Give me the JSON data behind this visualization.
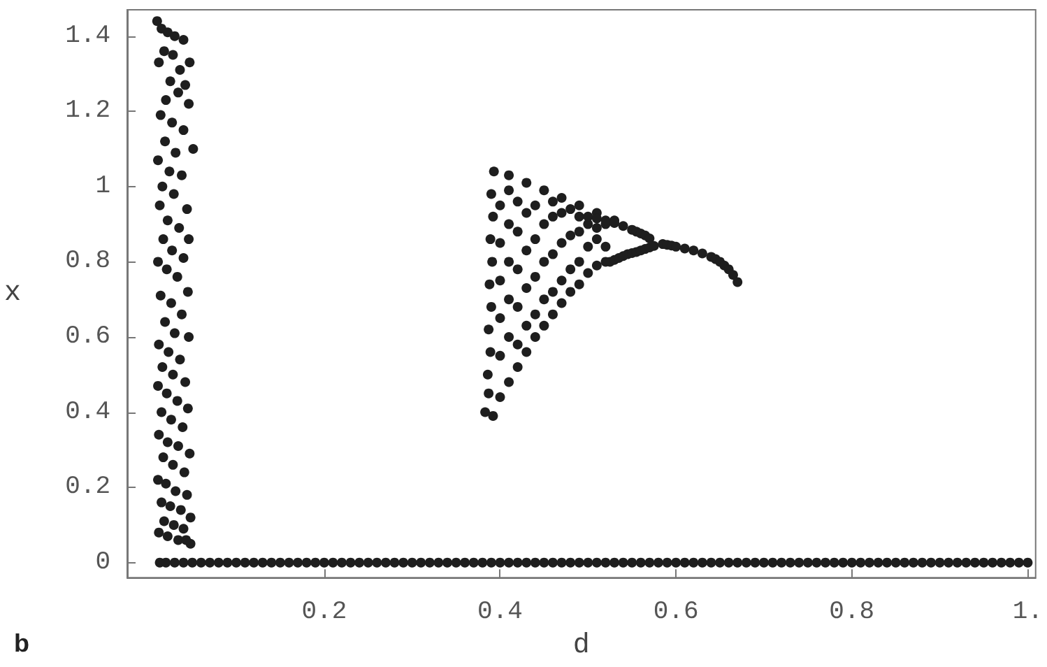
{
  "chart_data": {
    "type": "scatter",
    "xlabel": "d",
    "ylabel": "x",
    "annotations": [
      "b"
    ],
    "xlim": [
      -0.024,
      1.009
    ],
    "ylim": [
      -0.04,
      1.47
    ],
    "xticks": [
      0.2,
      0.4,
      0.6,
      0.8,
      {
        "value": 1,
        "label": "1."
      }
    ],
    "yticks": [
      0,
      0.2,
      0.4,
      0.6,
      0.8,
      1,
      1.2,
      1.4
    ],
    "marker": "circle",
    "series": [
      {
        "color": "#1e1e1e",
        "x": [
          0.01,
          0.015,
          0.022,
          0.03,
          0.04,
          0.047,
          0.018,
          0.028,
          0.036,
          0.012,
          0.025,
          0.042,
          0.02,
          0.034,
          0.046,
          0.014,
          0.027,
          0.04,
          0.051,
          0.019,
          0.031,
          0.011,
          0.024,
          0.038,
          0.016,
          0.029,
          0.044,
          0.013,
          0.022,
          0.035,
          0.046,
          0.017,
          0.027,
          0.04,
          0.011,
          0.021,
          0.033,
          0.045,
          0.014,
          0.026,
          0.038,
          0.019,
          0.03,
          0.046,
          0.012,
          0.023,
          0.036,
          0.016,
          0.028,
          0.042,
          0.011,
          0.021,
          0.033,
          0.045,
          0.015,
          0.026,
          0.039,
          0.012,
          0.022,
          0.034,
          0.047,
          0.017,
          0.028,
          0.041,
          0.011,
          0.02,
          0.031,
          0.044,
          0.015,
          0.025,
          0.037,
          0.048,
          0.018,
          0.029,
          0.04,
          0.012,
          0.022,
          0.034,
          0.048,
          0.043
        ],
        "values": [
          1.44,
          1.42,
          1.41,
          1.4,
          1.39,
          1.33,
          1.36,
          1.35,
          1.31,
          1.33,
          1.28,
          1.27,
          1.23,
          1.25,
          1.22,
          1.19,
          1.17,
          1.15,
          1.1,
          1.12,
          1.09,
          1.07,
          1.04,
          1.03,
          1.0,
          0.98,
          0.94,
          0.95,
          0.91,
          0.89,
          0.86,
          0.86,
          0.83,
          0.81,
          0.8,
          0.78,
          0.76,
          0.72,
          0.71,
          0.69,
          0.66,
          0.64,
          0.61,
          0.6,
          0.58,
          0.56,
          0.54,
          0.52,
          0.5,
          0.48,
          0.47,
          0.45,
          0.43,
          0.41,
          0.4,
          0.38,
          0.36,
          0.34,
          0.32,
          0.31,
          0.29,
          0.28,
          0.26,
          0.24,
          0.22,
          0.21,
          0.19,
          0.18,
          0.16,
          0.15,
          0.14,
          0.12,
          0.11,
          0.1,
          0.09,
          0.08,
          0.07,
          0.06,
          0.05,
          0.06
        ]
      },
      {
        "color": "#1e1e1e",
        "x": [
          0.013,
          0.02,
          0.03,
          0.04,
          0.05,
          0.06,
          0.07,
          0.08,
          0.09,
          0.1,
          0.11,
          0.12,
          0.13,
          0.14,
          0.15,
          0.16,
          0.17,
          0.18,
          0.19,
          0.2,
          0.21,
          0.22,
          0.23,
          0.24,
          0.25,
          0.26,
          0.27,
          0.28,
          0.29,
          0.3,
          0.31,
          0.32,
          0.33,
          0.34,
          0.35,
          0.36,
          0.37,
          0.38,
          0.39,
          0.4,
          0.41,
          0.42,
          0.43,
          0.44,
          0.45,
          0.46,
          0.47,
          0.48,
          0.49,
          0.5,
          0.51,
          0.52,
          0.53,
          0.54,
          0.55,
          0.56,
          0.57,
          0.58,
          0.59,
          0.6,
          0.61,
          0.62,
          0.63,
          0.64,
          0.65,
          0.66,
          0.67,
          0.68,
          0.69,
          0.7,
          0.71,
          0.72,
          0.73,
          0.74,
          0.75,
          0.76,
          0.77,
          0.78,
          0.79,
          0.8,
          0.81,
          0.82,
          0.83,
          0.84,
          0.85,
          0.86,
          0.87,
          0.88,
          0.89,
          0.9,
          0.91,
          0.92,
          0.93,
          0.94,
          0.95,
          0.96,
          0.97,
          0.98,
          0.99,
          1.0
        ],
        "values": [
          0,
          0,
          0,
          0,
          0,
          0,
          0,
          0,
          0,
          0,
          0,
          0,
          0,
          0,
          0,
          0,
          0,
          0,
          0,
          0,
          0,
          0,
          0,
          0,
          0,
          0,
          0,
          0,
          0,
          0,
          0,
          0,
          0,
          0,
          0,
          0,
          0,
          0,
          0,
          0,
          0,
          0,
          0,
          0,
          0,
          0,
          0,
          0,
          0,
          0,
          0,
          0,
          0,
          0,
          0,
          0,
          0,
          0,
          0,
          0,
          0,
          0,
          0,
          0,
          0,
          0,
          0,
          0,
          0,
          0,
          0,
          0,
          0,
          0,
          0,
          0,
          0,
          0,
          0,
          0,
          0,
          0,
          0,
          0,
          0,
          0,
          0,
          0,
          0,
          0,
          0,
          0,
          0,
          0,
          0,
          0,
          0,
          0,
          0,
          0
        ]
      },
      {
        "color": "#1e1e1e",
        "x": [
          0.393,
          0.41,
          0.43,
          0.45,
          0.47,
          0.49,
          0.51,
          0.53,
          0.39,
          0.392,
          0.389,
          0.391,
          0.388,
          0.39,
          0.387,
          0.389,
          0.386,
          0.387,
          0.383,
          0.392,
          0.4,
          0.41,
          0.42,
          0.43,
          0.44,
          0.45,
          0.46,
          0.47,
          0.48,
          0.49,
          0.5,
          0.51,
          0.52,
          0.4,
          0.4,
          0.4,
          0.4,
          0.4,
          0.41,
          0.41,
          0.41,
          0.41,
          0.41,
          0.42,
          0.42,
          0.42,
          0.42,
          0.42,
          0.43,
          0.43,
          0.43,
          0.43,
          0.44,
          0.44,
          0.44,
          0.44,
          0.45,
          0.45,
          0.45,
          0.46,
          0.46,
          0.46,
          0.46,
          0.47,
          0.47,
          0.47,
          0.48,
          0.48,
          0.48,
          0.49,
          0.49,
          0.49,
          0.5,
          0.5,
          0.51,
          0.51,
          0.52,
          0.52
        ],
        "values": [
          1.04,
          1.03,
          1.01,
          0.99,
          0.97,
          0.95,
          0.93,
          0.91,
          0.98,
          0.92,
          0.86,
          0.8,
          0.74,
          0.68,
          0.62,
          0.56,
          0.5,
          0.45,
          0.4,
          0.39,
          0.44,
          0.48,
          0.52,
          0.56,
          0.6,
          0.63,
          0.66,
          0.69,
          0.72,
          0.74,
          0.77,
          0.79,
          0.8,
          0.55,
          0.65,
          0.75,
          0.85,
          0.95,
          0.6,
          0.7,
          0.8,
          0.9,
          0.99,
          0.58,
          0.68,
          0.78,
          0.88,
          0.96,
          0.63,
          0.73,
          0.83,
          0.93,
          0.66,
          0.76,
          0.86,
          0.95,
          0.7,
          0.8,
          0.9,
          0.72,
          0.82,
          0.92,
          0.96,
          0.75,
          0.85,
          0.93,
          0.78,
          0.87,
          0.94,
          0.8,
          0.88,
          0.92,
          0.84,
          0.9,
          0.86,
          0.89,
          0.84,
          0.9
        ]
      },
      {
        "color": "#1e1e1e",
        "x": [
          0.5,
          0.51,
          0.52,
          0.53,
          0.54,
          0.55,
          0.555,
          0.56,
          0.565,
          0.57,
          0.525,
          0.53,
          0.535,
          0.54,
          0.545,
          0.55,
          0.555,
          0.56,
          0.565,
          0.57,
          0.575,
          0.585,
          0.59,
          0.595,
          0.6,
          0.61,
          0.62,
          0.63,
          0.64,
          0.645,
          0.65,
          0.655,
          0.66,
          0.665,
          0.67
        ],
        "values": [
          0.92,
          0.915,
          0.91,
          0.903,
          0.895,
          0.885,
          0.88,
          0.875,
          0.87,
          0.862,
          0.8,
          0.805,
          0.81,
          0.815,
          0.82,
          0.823,
          0.826,
          0.83,
          0.834,
          0.838,
          0.842,
          0.847,
          0.845,
          0.843,
          0.84,
          0.835,
          0.83,
          0.822,
          0.813,
          0.807,
          0.8,
          0.79,
          0.78,
          0.765,
          0.746
        ]
      }
    ]
  }
}
